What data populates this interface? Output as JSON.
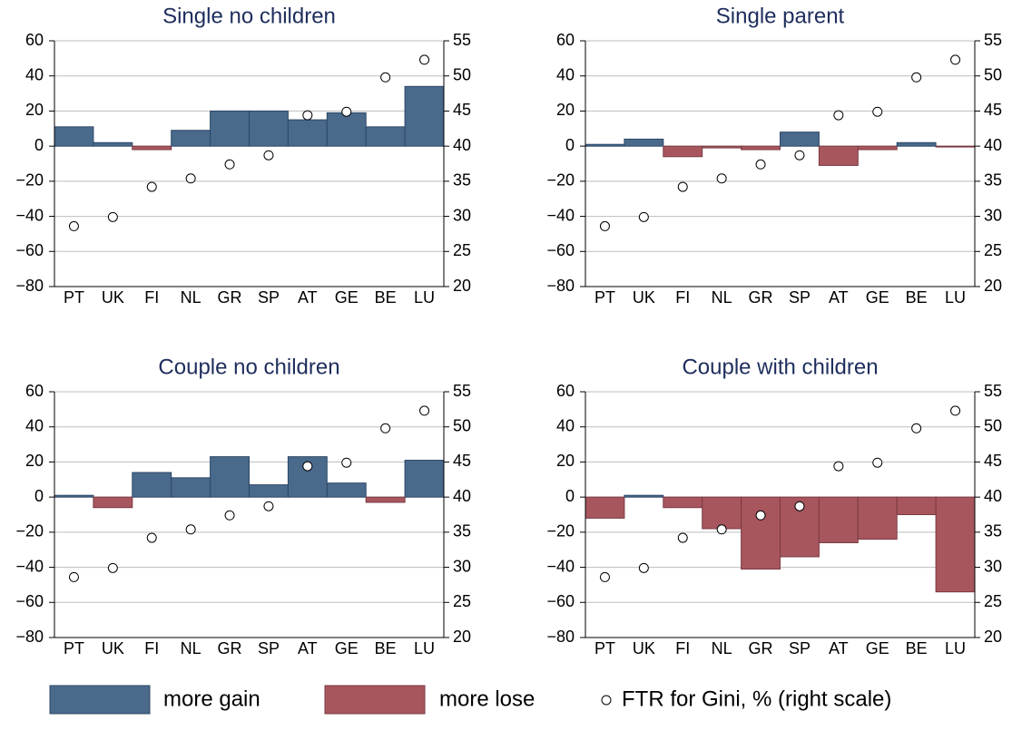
{
  "chart_data": [
    {
      "type": "bar",
      "title": "Single no children",
      "categories": [
        "PT",
        "UK",
        "FI",
        "NL",
        "GR",
        "SP",
        "AT",
        "GE",
        "BE",
        "LU"
      ],
      "series": [
        {
          "values": [
            11,
            2,
            -2,
            9,
            20,
            20,
            15,
            19,
            11,
            34
          ]
        },
        {
          "values": [
            28.6,
            29.9,
            34.2,
            35.4,
            37.4,
            38.7,
            44.4,
            44.9,
            49.8,
            52.3
          ],
          "axis": "y2",
          "marker": "circle"
        }
      ],
      "ylim": [
        -80,
        60
      ],
      "yticks": [
        {
          "value": -80,
          "label": "−80"
        },
        {
          "value": -60,
          "label": "−60"
        },
        {
          "value": -40,
          "label": "−40"
        },
        {
          "value": -20,
          "label": "−20"
        },
        0,
        20,
        40,
        60
      ],
      "y2lim": [
        20,
        55
      ],
      "y2ticks": [
        20,
        25,
        30,
        35,
        40,
        45,
        50,
        55
      ],
      "grid": true
    },
    {
      "type": "bar",
      "title": "Single parent",
      "categories": [
        "PT",
        "UK",
        "FI",
        "NL",
        "GR",
        "SP",
        "AT",
        "GE",
        "BE",
        "LU"
      ],
      "series": [
        {
          "values": [
            1,
            4,
            -6,
            -1,
            -2,
            8,
            -11,
            -2,
            2,
            -0.5
          ]
        },
        {
          "values": [
            28.6,
            29.9,
            34.2,
            35.4,
            37.4,
            38.7,
            44.4,
            44.9,
            49.8,
            52.3
          ],
          "axis": "y2",
          "marker": "circle"
        }
      ],
      "ylim": [
        -80,
        60
      ],
      "yticks": [
        {
          "value": -80,
          "label": "−80"
        },
        {
          "value": -60,
          "label": "−60"
        },
        {
          "value": -40,
          "label": "−40"
        },
        {
          "value": -20,
          "label": "−20"
        },
        0,
        20,
        40,
        60
      ],
      "y2lim": [
        20,
        55
      ],
      "y2ticks": [
        20,
        25,
        30,
        35,
        40,
        45,
        50,
        55
      ],
      "grid": true
    },
    {
      "type": "bar",
      "title": "Couple no children",
      "categories": [
        "PT",
        "UK",
        "FI",
        "NL",
        "GR",
        "SP",
        "AT",
        "GE",
        "BE",
        "LU"
      ],
      "series": [
        {
          "values": [
            1,
            -6,
            14,
            11,
            23,
            7,
            23,
            8,
            -3,
            21
          ]
        },
        {
          "values": [
            28.6,
            29.9,
            34.2,
            35.4,
            37.4,
            38.7,
            44.4,
            44.9,
            49.8,
            52.3
          ],
          "axis": "y2",
          "marker": "circle"
        }
      ],
      "ylim": [
        -80,
        60
      ],
      "yticks": [
        {
          "value": -80,
          "label": "−80"
        },
        {
          "value": -60,
          "label": "−60"
        },
        {
          "value": -40,
          "label": "−40"
        },
        {
          "value": -20,
          "label": "−20"
        },
        0,
        20,
        40,
        60
      ],
      "y2lim": [
        20,
        55
      ],
      "y2ticks": [
        20,
        25,
        30,
        35,
        40,
        45,
        50,
        55
      ],
      "grid": true
    },
    {
      "type": "bar",
      "title": "Couple with children",
      "categories": [
        "PT",
        "UK",
        "FI",
        "NL",
        "GR",
        "SP",
        "AT",
        "GE",
        "BE",
        "LU"
      ],
      "series": [
        {
          "values": [
            -12,
            1,
            -6,
            -18,
            -41,
            -34,
            -26,
            -24,
            -10,
            -54
          ]
        },
        {
          "values": [
            28.6,
            29.9,
            34.2,
            35.4,
            37.4,
            38.7,
            44.4,
            44.9,
            49.8,
            52.3
          ],
          "axis": "y2",
          "marker": "circle"
        }
      ],
      "ylim": [
        -80,
        60
      ],
      "yticks": [
        {
          "value": -80,
          "label": "−80"
        },
        {
          "value": -60,
          "label": "−60"
        },
        {
          "value": -40,
          "label": "−40"
        },
        {
          "value": -20,
          "label": "−20"
        },
        0,
        20,
        40,
        60
      ],
      "y2lim": [
        20,
        55
      ],
      "y2ticks": [
        20,
        25,
        30,
        35,
        40,
        45,
        50,
        55
      ],
      "grid": true
    }
  ],
  "legend": [
    {
      "name": "more gain",
      "color": "#4a6a8c"
    },
    {
      "name": "more lose",
      "color": "#a8565e"
    },
    {
      "name": "FTR for Gini, % (right scale)",
      "marker": "circle"
    }
  ]
}
